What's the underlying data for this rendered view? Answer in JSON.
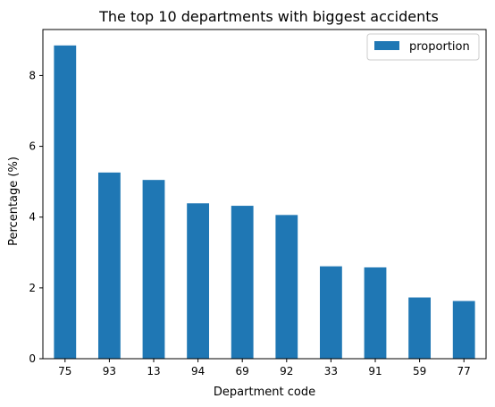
{
  "chart_data": {
    "type": "bar",
    "title": "The top 10 departments with biggest accidents",
    "xlabel": "Department code",
    "ylabel": "Percentage (%)",
    "categories": [
      "75",
      "93",
      "13",
      "94",
      "69",
      "92",
      "33",
      "91",
      "59",
      "77"
    ],
    "series": [
      {
        "name": "proportion",
        "values": [
          8.85,
          5.26,
          5.05,
          4.39,
          4.32,
          4.06,
          2.61,
          2.58,
          1.73,
          1.63
        ]
      }
    ],
    "ylim": [
      0,
      9.3
    ],
    "yticks": [
      0,
      2,
      4,
      6,
      8
    ],
    "grid": false,
    "legend_position": "top-right",
    "bar_color": "#1f77b4"
  }
}
